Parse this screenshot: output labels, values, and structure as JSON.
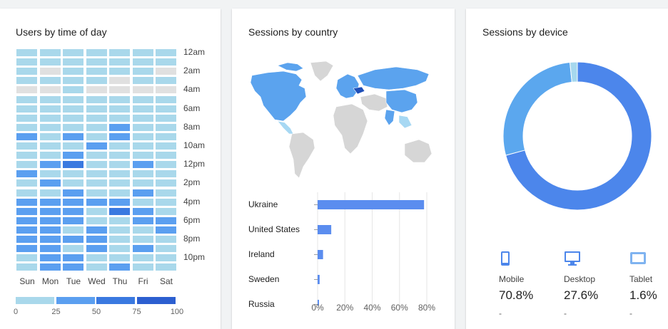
{
  "cards": {
    "time": {
      "title": "Users by time of day"
    },
    "country": {
      "title": "Sessions by country"
    },
    "device": {
      "title": "Sessions by device"
    }
  },
  "colors": {
    "c0": "#a9d8eb",
    "c1": "#5b9ff0",
    "c2": "#3a79e0",
    "c3": "#2c5fd0",
    "empty": "#e0e0e0",
    "map_highlight": "#5ba3ee",
    "map_light": "#a7d8f3",
    "map_gray": "#d6d6d6",
    "bar": "#5b8def",
    "mobile": "#4c86eb",
    "desktop": "#5ba7ee",
    "tablet": "#a6d8ee"
  },
  "chart_data": [
    {
      "type": "heatmap",
      "title": "Users by time of day",
      "days": [
        "Sun",
        "Mon",
        "Tue",
        "Wed",
        "Thu",
        "Fri",
        "Sat"
      ],
      "hour_labels": [
        "12am",
        "2am",
        "4am",
        "6am",
        "8am",
        "10am",
        "12pm",
        "2pm",
        "4pm",
        "6pm",
        "8pm",
        "10pm"
      ],
      "legend_ticks": [
        "0",
        "25",
        "50",
        "75",
        "100"
      ],
      "levels_by_hour": [
        [
          0,
          0,
          0,
          0,
          0,
          0,
          0
        ],
        [
          0,
          0,
          0,
          0,
          0,
          0,
          0
        ],
        [
          0,
          -1,
          0,
          0,
          0,
          0,
          -1
        ],
        [
          0,
          0,
          0,
          0,
          -1,
          0,
          0
        ],
        [
          -1,
          -1,
          0,
          -1,
          -1,
          -1,
          -1
        ],
        [
          0,
          0,
          0,
          0,
          0,
          0,
          0
        ],
        [
          0,
          0,
          0,
          0,
          0,
          0,
          0
        ],
        [
          0,
          0,
          0,
          0,
          0,
          0,
          0
        ],
        [
          0,
          0,
          0,
          0,
          1,
          0,
          0
        ],
        [
          1,
          0,
          1,
          0,
          1,
          0,
          0
        ],
        [
          0,
          0,
          0,
          1,
          0,
          0,
          0
        ],
        [
          0,
          0,
          1,
          0,
          0,
          0,
          0
        ],
        [
          0,
          1,
          2,
          0,
          0,
          1,
          0
        ],
        [
          1,
          0,
          0,
          0,
          0,
          0,
          0
        ],
        [
          0,
          1,
          0,
          0,
          0,
          0,
          0
        ],
        [
          0,
          0,
          1,
          0,
          0,
          1,
          0
        ],
        [
          1,
          1,
          1,
          1,
          1,
          0,
          0
        ],
        [
          1,
          1,
          1,
          0,
          2,
          1,
          0
        ],
        [
          1,
          1,
          1,
          0,
          0,
          1,
          1
        ],
        [
          1,
          1,
          0,
          1,
          0,
          0,
          1
        ],
        [
          1,
          1,
          1,
          1,
          0,
          0,
          0
        ],
        [
          1,
          1,
          0,
          1,
          0,
          1,
          0
        ],
        [
          0,
          1,
          1,
          0,
          0,
          0,
          0
        ],
        [
          0,
          1,
          1,
          0,
          1,
          0,
          0
        ]
      ]
    },
    {
      "type": "bar",
      "title": "Sessions by country",
      "categories": [
        "Ukraine",
        "United States",
        "Ireland",
        "Sweden",
        "Russia"
      ],
      "values": [
        78,
        10,
        4,
        1.5,
        1
      ],
      "xlim": [
        0,
        80
      ],
      "xticks": [
        "0%",
        "20%",
        "40%",
        "60%",
        "80%"
      ]
    },
    {
      "type": "pie",
      "title": "Sessions by device",
      "categories": [
        "Mobile",
        "Desktop",
        "Tablet"
      ],
      "values": [
        70.8,
        27.6,
        1.6
      ]
    }
  ],
  "devices": [
    {
      "name": "Mobile",
      "pct": "70.8%",
      "change": "-"
    },
    {
      "name": "Desktop",
      "pct": "27.6%",
      "change": "-"
    },
    {
      "name": "Tablet",
      "pct": "1.6%",
      "change": "-"
    }
  ]
}
